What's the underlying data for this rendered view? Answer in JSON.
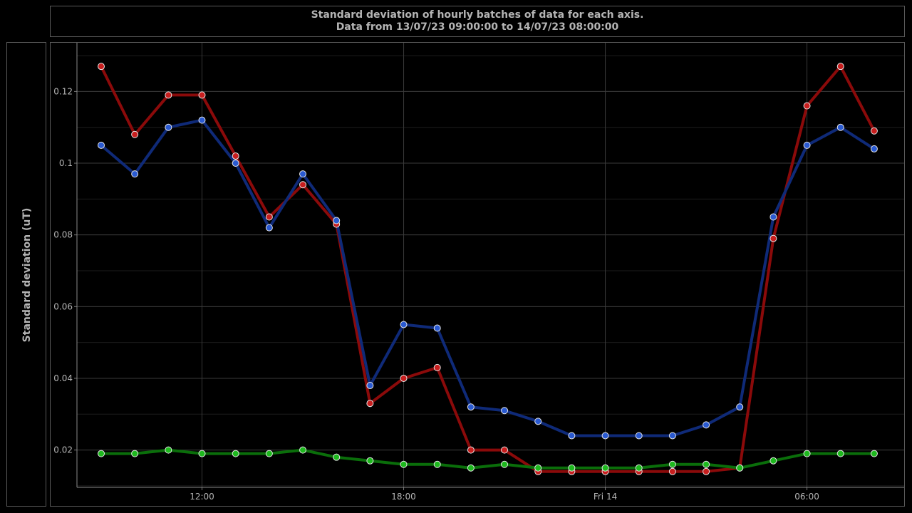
{
  "chart_data": {
    "type": "line",
    "title": "Standard deviation of hourly batches of data for each axis.",
    "subtitle": "Data from 13/07/23 09:00:00 to 14/07/23 08:00:00",
    "xlabel": "",
    "ylabel": "Standard deviation (uT)",
    "x": [
      "13/07/23 09:00",
      "13/07/23 10:00",
      "13/07/23 11:00",
      "13/07/23 12:00",
      "13/07/23 13:00",
      "13/07/23 14:00",
      "13/07/23 15:00",
      "13/07/23 16:00",
      "13/07/23 17:00",
      "13/07/23 18:00",
      "13/07/23 19:00",
      "13/07/23 20:00",
      "13/07/23 21:00",
      "13/07/23 22:00",
      "13/07/23 23:00",
      "14/07/23 00:00",
      "14/07/23 01:00",
      "14/07/23 02:00",
      "14/07/23 03:00",
      "14/07/23 04:00",
      "14/07/23 05:00",
      "14/07/23 06:00",
      "14/07/23 07:00",
      "14/07/23 08:00"
    ],
    "x_ticks": [
      {
        "label": "12:00",
        "x_index": 3
      },
      {
        "label": "18:00",
        "x_index": 9
      },
      {
        "label": "Fri 14",
        "x_index": 15
      },
      {
        "label": "06:00",
        "x_index": 21
      }
    ],
    "y_ticks": [
      {
        "label": "0.02",
        "value": 0.02
      },
      {
        "label": "0.04",
        "value": 0.04
      },
      {
        "label": "0.06",
        "value": 0.06
      },
      {
        "label": "0.08",
        "value": 0.08
      },
      {
        "label": "0.1",
        "value": 0.1
      },
      {
        "label": "0.12",
        "value": 0.12
      }
    ],
    "ylim": [
      0.008,
      0.132
    ],
    "grid": true,
    "legend": "none",
    "series": [
      {
        "color": "#8b0a0a",
        "marker_color": "#c81e1e",
        "values": [
          0.127,
          0.108,
          0.119,
          0.119,
          0.102,
          0.085,
          0.094,
          0.083,
          0.033,
          0.04,
          0.043,
          0.02,
          0.02,
          0.014,
          0.014,
          0.014,
          0.014,
          0.014,
          0.014,
          0.015,
          0.079,
          0.116,
          0.127,
          0.109
        ]
      },
      {
        "color": "#0f2a78",
        "marker_color": "#2a5ad2",
        "values": [
          0.105,
          0.097,
          0.11,
          0.112,
          0.1,
          0.082,
          0.097,
          0.084,
          0.038,
          0.055,
          0.054,
          0.032,
          0.031,
          0.028,
          0.024,
          0.024,
          0.024,
          0.024,
          0.027,
          0.032,
          0.085,
          0.105,
          0.11,
          0.104
        ]
      },
      {
        "color": "#0a6e0a",
        "marker_color": "#1eb91e",
        "values": [
          0.019,
          0.019,
          0.02,
          0.019,
          0.019,
          0.019,
          0.02,
          0.018,
          0.017,
          0.016,
          0.016,
          0.015,
          0.016,
          0.015,
          0.015,
          0.015,
          0.015,
          0.016,
          0.016,
          0.015,
          0.017,
          0.019,
          0.019,
          0.019
        ]
      }
    ]
  }
}
